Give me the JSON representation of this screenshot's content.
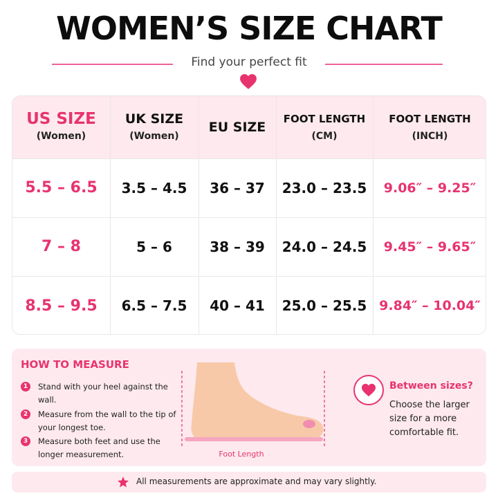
{
  "header": {
    "title": "WOMEN’S SIZE CHART",
    "subtitle": "Find your perfect fit",
    "heart_icon": "heart-icon"
  },
  "table": {
    "columns": [
      {
        "label": "US SIZE",
        "sub": "(Women)"
      },
      {
        "label": "UK SIZE",
        "sub": "(Women)"
      },
      {
        "label": "EU SIZE",
        "sub": ""
      },
      {
        "label": "FOOT LENGTH",
        "sub": "(CM)"
      },
      {
        "label": "FOOT LENGTH",
        "sub": "(INCH)"
      }
    ],
    "rows": [
      {
        "us": "5.5 – 6.5",
        "uk": "3.5 – 4.5",
        "eu": "36 – 37",
        "cm": "23.0 – 23.5",
        "inch": "9.06″ – 9.25″"
      },
      {
        "us": "7 – 8",
        "uk": "5 – 6",
        "eu": "38 – 39",
        "cm": "24.0 – 24.5",
        "inch": "9.45″ – 9.65″"
      },
      {
        "us": "8.5 – 9.5",
        "uk": "6.5 – 7.5",
        "eu": "40 – 41",
        "cm": "25.0 – 25.5",
        "inch": "9.84″ – 10.04″"
      }
    ]
  },
  "measure": {
    "title": "HOW TO MEASURE",
    "steps": [
      {
        "num": "1",
        "text": "Stand with your heel against the wall."
      },
      {
        "num": "2",
        "text": "Measure from the wall to the tip of your longest toe."
      },
      {
        "num": "3",
        "text": "Measure both feet and use the longer measurement."
      }
    ],
    "foot_label": "Foot Length",
    "between_title": "Between sizes?",
    "between_text": "Choose the larger size for a more comfortable fit."
  },
  "note": {
    "text": "All measurements are approximate and may vary slightly.",
    "icon": "star-icon"
  },
  "colors": {
    "accent": "#e8336f",
    "panel": "#fde9ee"
  }
}
